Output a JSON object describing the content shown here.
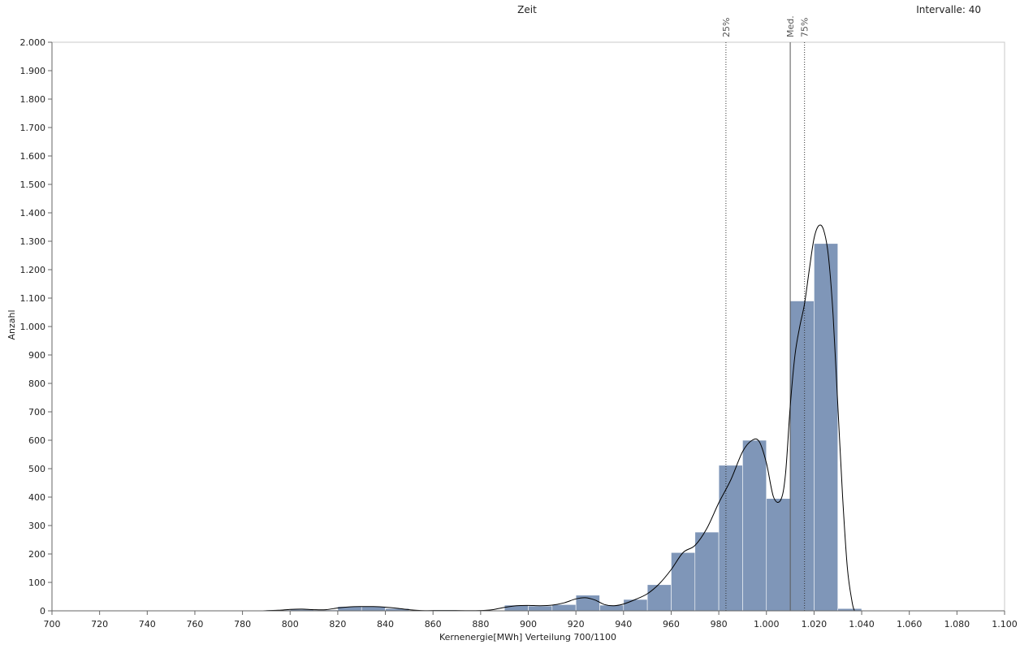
{
  "header": {
    "title": "Zeit",
    "intervals_label": "Intervalle: 40"
  },
  "chart_data": {
    "type": "histogram",
    "xlabel": "Kernenergie[MWh] Verteilung 700/1100",
    "ylabel": "Anzahl",
    "xlim": [
      700,
      1100
    ],
    "ylim": [
      0,
      2000
    ],
    "x_ticks": [
      700,
      720,
      740,
      760,
      780,
      800,
      820,
      840,
      860,
      880,
      900,
      920,
      940,
      960,
      980,
      1000,
      1020,
      1040,
      1060,
      1080,
      1100
    ],
    "x_tick_labels": [
      "700",
      "720",
      "740",
      "760",
      "780",
      "800",
      "820",
      "840",
      "860",
      "880",
      "900",
      "920",
      "940",
      "960",
      "980",
      "1.000",
      "1.020",
      "1.040",
      "1.060",
      "1.080",
      "1.100"
    ],
    "y_ticks": [
      0,
      100,
      200,
      300,
      400,
      500,
      600,
      700,
      800,
      900,
      1000,
      1100,
      1200,
      1300,
      1400,
      1500,
      1600,
      1700,
      1800,
      1900,
      2000
    ],
    "y_tick_labels": [
      "0",
      "100",
      "200",
      "300",
      "400",
      "500",
      "600",
      "700",
      "800",
      "900",
      "1.000",
      "1.100",
      "1.200",
      "1.300",
      "1.400",
      "1.500",
      "1.600",
      "1.700",
      "1.800",
      "1.900",
      "2.000"
    ],
    "bin_width": 10,
    "bins": [
      {
        "x0": 790,
        "count": 3
      },
      {
        "x0": 800,
        "count": 5
      },
      {
        "x0": 810,
        "count": 3
      },
      {
        "x0": 820,
        "count": 15
      },
      {
        "x0": 830,
        "count": 15
      },
      {
        "x0": 840,
        "count": 8
      },
      {
        "x0": 860,
        "count": 3
      },
      {
        "x0": 880,
        "count": 2
      },
      {
        "x0": 890,
        "count": 20
      },
      {
        "x0": 900,
        "count": 17
      },
      {
        "x0": 910,
        "count": 22
      },
      {
        "x0": 920,
        "count": 55
      },
      {
        "x0": 930,
        "count": 20
      },
      {
        "x0": 940,
        "count": 40
      },
      {
        "x0": 950,
        "count": 92
      },
      {
        "x0": 960,
        "count": 205
      },
      {
        "x0": 970,
        "count": 277
      },
      {
        "x0": 980,
        "count": 512
      },
      {
        "x0": 990,
        "count": 600
      },
      {
        "x0": 1000,
        "count": 395
      },
      {
        "x0": 1010,
        "count": 1090
      },
      {
        "x0": 1020,
        "count": 1292
      },
      {
        "x0": 1030,
        "count": 8
      }
    ],
    "density_curve": [
      [
        788,
        0
      ],
      [
        795,
        2
      ],
      [
        800,
        5
      ],
      [
        805,
        6
      ],
      [
        810,
        4
      ],
      [
        815,
        4
      ],
      [
        820,
        10
      ],
      [
        825,
        14
      ],
      [
        830,
        15
      ],
      [
        835,
        15
      ],
      [
        840,
        13
      ],
      [
        845,
        9
      ],
      [
        850,
        4
      ],
      [
        855,
        1
      ],
      [
        860,
        1
      ],
      [
        870,
        1
      ],
      [
        880,
        1
      ],
      [
        885,
        4
      ],
      [
        890,
        12
      ],
      [
        895,
        18
      ],
      [
        900,
        19
      ],
      [
        905,
        18
      ],
      [
        910,
        20
      ],
      [
        915,
        28
      ],
      [
        920,
        42
      ],
      [
        924,
        46
      ],
      [
        928,
        38
      ],
      [
        932,
        22
      ],
      [
        936,
        18
      ],
      [
        940,
        24
      ],
      [
        945,
        40
      ],
      [
        950,
        60
      ],
      [
        955,
        95
      ],
      [
        960,
        145
      ],
      [
        965,
        205
      ],
      [
        970,
        230
      ],
      [
        975,
        290
      ],
      [
        980,
        380
      ],
      [
        985,
        460
      ],
      [
        990,
        560
      ],
      [
        994,
        600
      ],
      [
        997,
        595
      ],
      [
        1000,
        520
      ],
      [
        1003,
        400
      ],
      [
        1006,
        390
      ],
      [
        1008,
        480
      ],
      [
        1010,
        720
      ],
      [
        1012,
        900
      ],
      [
        1014,
        1000
      ],
      [
        1016,
        1080
      ],
      [
        1018,
        1200
      ],
      [
        1020,
        1310
      ],
      [
        1022,
        1355
      ],
      [
        1024,
        1340
      ],
      [
        1026,
        1250
      ],
      [
        1028,
        1040
      ],
      [
        1030,
        720
      ],
      [
        1032,
        400
      ],
      [
        1034,
        150
      ],
      [
        1036,
        30
      ],
      [
        1037,
        0
      ]
    ],
    "reference_lines": [
      {
        "label": "25%",
        "x": 983,
        "style": "dotted"
      },
      {
        "label": "Med.",
        "x": 1010,
        "style": "solid"
      },
      {
        "label": "75%",
        "x": 1016,
        "style": "dotted"
      }
    ],
    "bar_color": "#7f96b8",
    "bar_edge_color": "#ffffff",
    "curve_color": "#000000",
    "grid": false
  }
}
